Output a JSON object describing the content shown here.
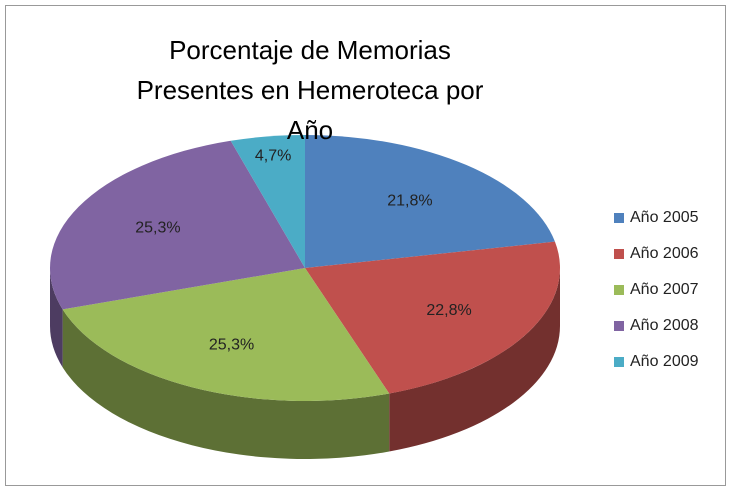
{
  "chart_data": {
    "type": "pie",
    "title": "Porcentaje de Memorias Presentes en Hemeroteca por Año",
    "categories": [
      "Año 2005",
      "Año 2006",
      "Año 2007",
      "Año 2008",
      "Año 2009"
    ],
    "values": [
      21.8,
      22.8,
      25.3,
      25.3,
      4.7
    ],
    "value_labels": [
      "21,8%",
      "22,8%",
      "25,3%",
      "25,3%",
      "4,7%"
    ],
    "colors": [
      "#4f81bd",
      "#c0504d",
      "#9bbb59",
      "#8064a2",
      "#4bacc6"
    ],
    "legend": "right"
  }
}
